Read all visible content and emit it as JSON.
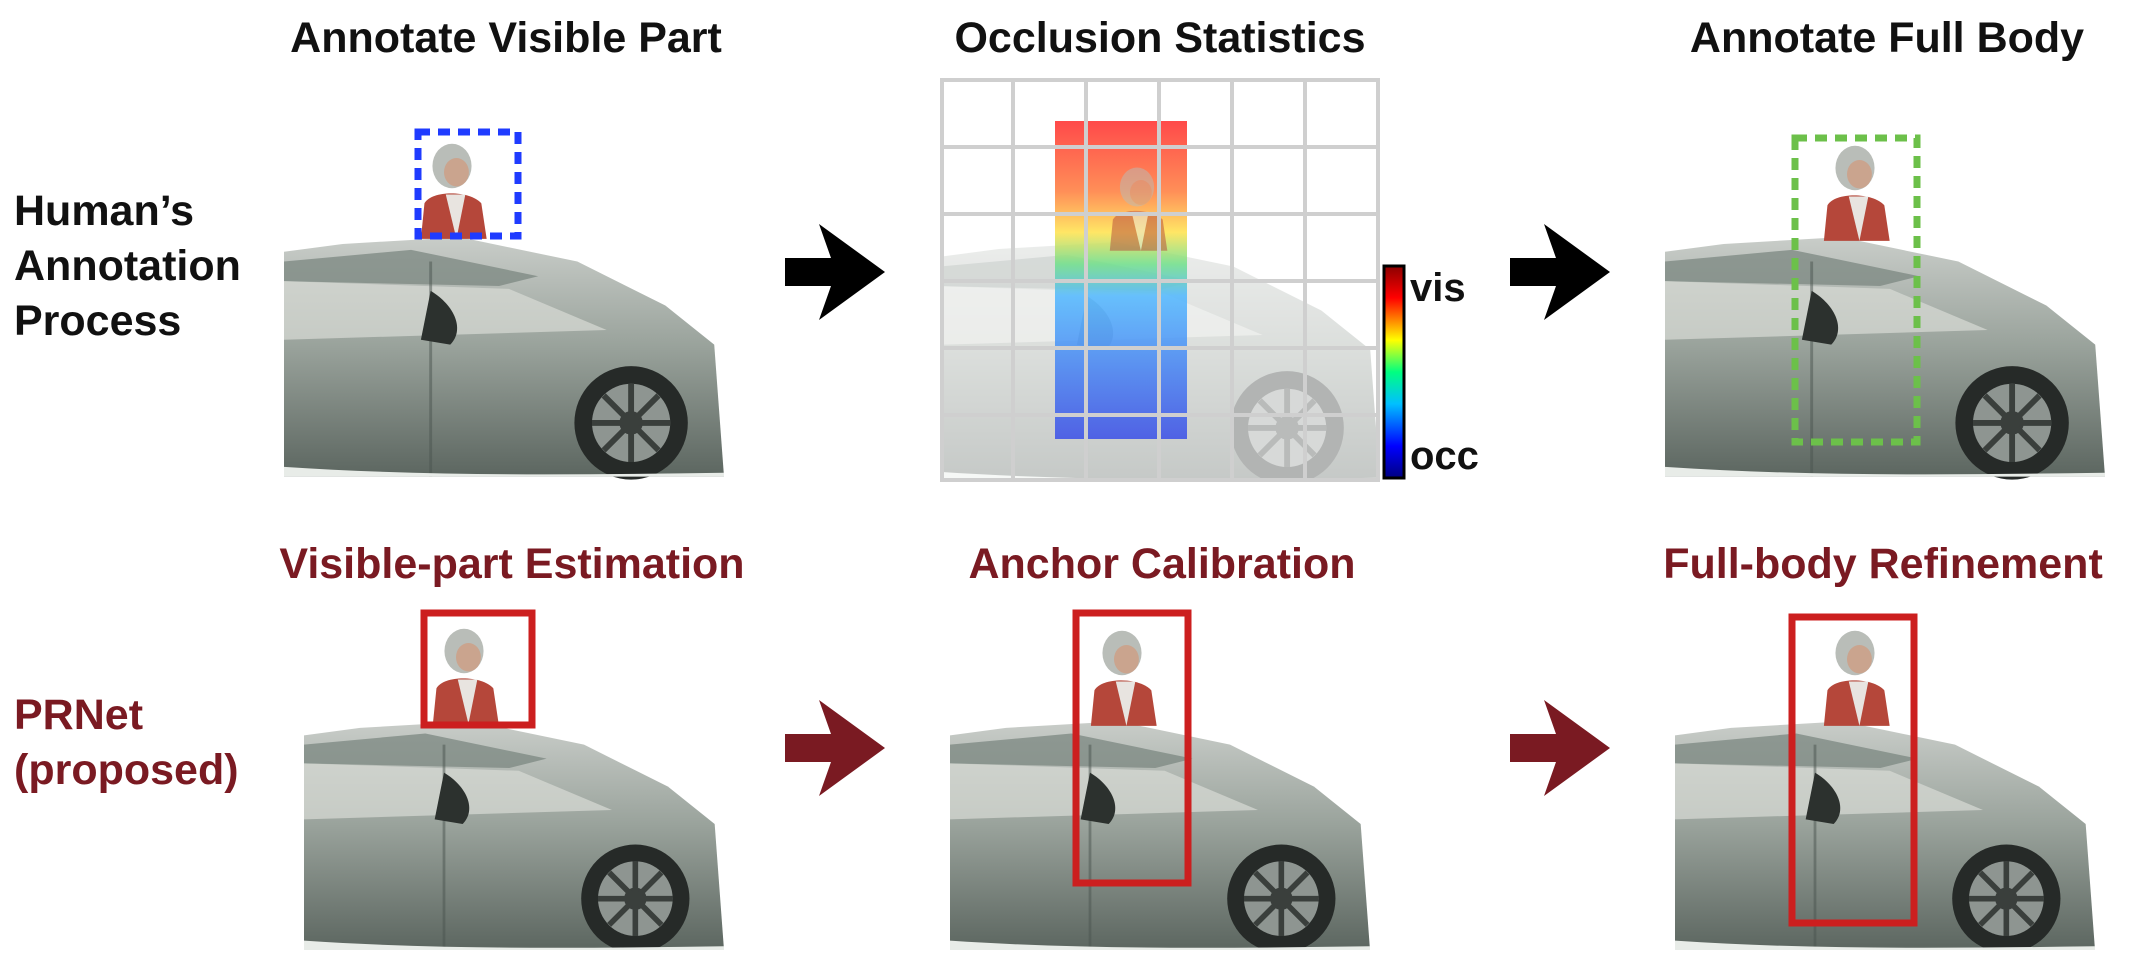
{
  "column_titles": [
    "Annotate Visible Part",
    "Occlusion Statistics",
    "Annotate Full Body"
  ],
  "row_labels": {
    "human": "Human’s Annotation Process",
    "prnet": "PRNet (proposed)"
  },
  "step_titles": [
    "Visible-part Estimation",
    "Anchor Calibration",
    "Full-body Refinement"
  ],
  "colorbar": {
    "top_label": "vis",
    "bottom_label": "occ"
  },
  "colors": {
    "human_text": "#111111",
    "proposed_text": "#7a1a22",
    "visible_box": "#1f3bff",
    "full_body_box": "#6cc04a",
    "detection_box": "#cc1f1f",
    "human_arrow": "#000000",
    "proposed_arrow": "#7a1a22"
  },
  "icons": [
    "car-image",
    "pedestrian-image",
    "flow-arrow-icon",
    "heatmap-grid",
    "colorbar"
  ]
}
